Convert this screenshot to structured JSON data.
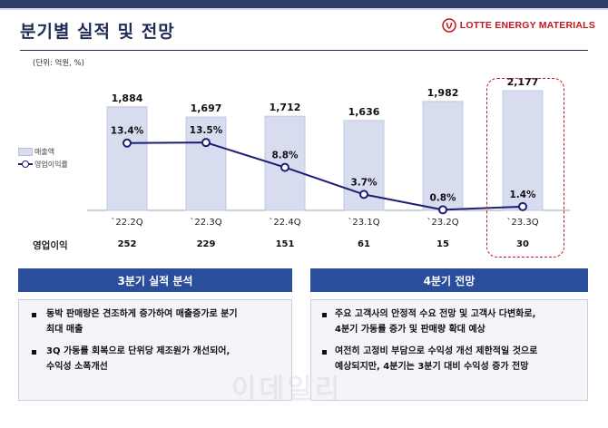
{
  "header": {
    "title": "분기별 실적 및 전망",
    "brand": "LOTTE ENERGY MATERIALS",
    "brand_color": "#c4161c"
  },
  "unit_note": "(단위: 억원, %)",
  "legend": {
    "bar_label": "매출액",
    "line_label": "영업이익률"
  },
  "operating_profit_label": "영업이익",
  "chart_data": {
    "type": "bar",
    "categories": [
      "`22.2Q",
      "`22.3Q",
      "`22.4Q",
      "`23.1Q",
      "`23.2Q",
      "`23.3Q"
    ],
    "series": [
      {
        "name": "매출액",
        "type": "bar",
        "values": [
          1884,
          1697,
          1712,
          1636,
          1982,
          2177
        ],
        "value_labels": [
          "1,884",
          "1,697",
          "1,712",
          "1,636",
          "1,982",
          "2,177"
        ],
        "color": "#d7dcef"
      },
      {
        "name": "영업이익률",
        "type": "line",
        "values": [
          13.4,
          13.5,
          8.8,
          3.7,
          0.8,
          1.4
        ],
        "value_labels": [
          "13.4%",
          "13.5%",
          "8.8%",
          "3.7%",
          "0.8%",
          "1.4%"
        ],
        "color": "#1c1f73"
      }
    ],
    "operating_profit": [
      252,
      229,
      151,
      61,
      15,
      30
    ],
    "highlighted_category": "`23.3Q"
  },
  "panels": [
    {
      "heading": "3분기 실적 분석",
      "bullets": [
        [
          "동박 판매량은 견조하게 증가하여 매출증가로 분기",
          "최대 매출"
        ],
        [
          "3Q 가동률 회복으로 단위당 제조원가 개선되어,",
          "수익성 소폭개선"
        ]
      ]
    },
    {
      "heading": "4분기 전망",
      "bullets": [
        [
          "주요 고객사의 안정적 수요 전망 및 고객사 다변화로,",
          "4분기 가동률 증가 및 판매량 확대 예상"
        ],
        [
          "여전히 고정비 부담으로 수익성 개선 제한적일 것으로",
          "예상되지만, 4분기는 3분기 대비 수익성 증가 전망"
        ]
      ]
    }
  ],
  "watermark": "이데일리"
}
